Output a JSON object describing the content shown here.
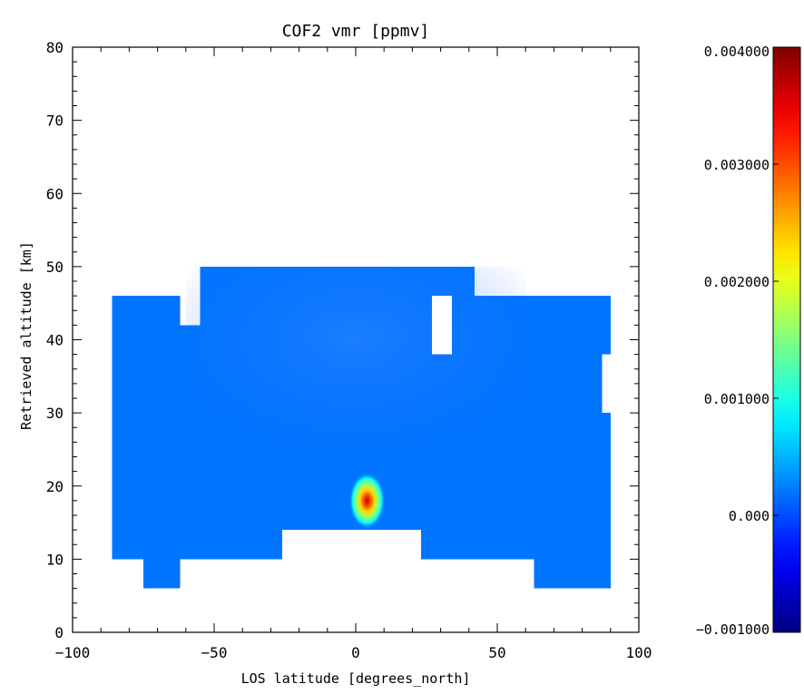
{
  "chart_data": {
    "type": "heatmap",
    "title": "COF2 vmr [ppmv]",
    "xlabel": "LOS latitude [degrees_north]",
    "ylabel": "Retrieved altitude [km]",
    "xlim": [
      -100,
      100
    ],
    "ylim": [
      0,
      80
    ],
    "xticks": [
      -100,
      -50,
      0,
      50,
      100
    ],
    "xtick_labels": [
      "−100",
      "−50",
      "0",
      "50",
      "100"
    ],
    "yticks": [
      0,
      10,
      20,
      30,
      40,
      50,
      60,
      70,
      80
    ],
    "ytick_labels": [
      "0",
      "10",
      "20",
      "30",
      "40",
      "50",
      "60",
      "70",
      "80"
    ],
    "colorbar": {
      "range": [
        -0.001,
        0.004
      ],
      "colormap": "jet",
      "ticks": [
        -0.001,
        0.0,
        0.001,
        0.002,
        0.003,
        0.004
      ],
      "tick_labels": [
        "−0.001000",
        "0.000",
        "0.001000",
        "0.002000",
        "0.003000",
        "0.004000"
      ]
    },
    "background_value": 0.0002,
    "data_region": [
      {
        "x": [
          -86,
          -62
        ],
        "y": [
          6,
          46
        ]
      },
      {
        "x": [
          -75,
          -62
        ],
        "y": [
          6,
          10
        ]
      },
      {
        "x": [
          -62,
          -55
        ],
        "y": [
          10,
          42
        ]
      },
      {
        "x": [
          -55,
          -26
        ],
        "y": [
          10,
          50
        ]
      },
      {
        "x": [
          -26,
          23
        ],
        "y": [
          14,
          50
        ]
      },
      {
        "x": [
          23,
          42
        ],
        "y": [
          10,
          50
        ]
      },
      {
        "x": [
          42,
          63
        ],
        "y": [
          10,
          46
        ]
      },
      {
        "x": [
          63,
          90
        ],
        "y": [
          6,
          46
        ]
      }
    ],
    "missing_patches": [
      {
        "x": [
          -86,
          -75
        ],
        "y": [
          0,
          10
        ]
      },
      {
        "x": [
          27,
          34
        ],
        "y": [
          38,
          46
        ]
      },
      {
        "x": [
          87,
          91
        ],
        "y": [
          30,
          38
        ]
      }
    ],
    "hotspot": {
      "x": 4,
      "y": 18,
      "peak_value": 0.0037
    }
  }
}
